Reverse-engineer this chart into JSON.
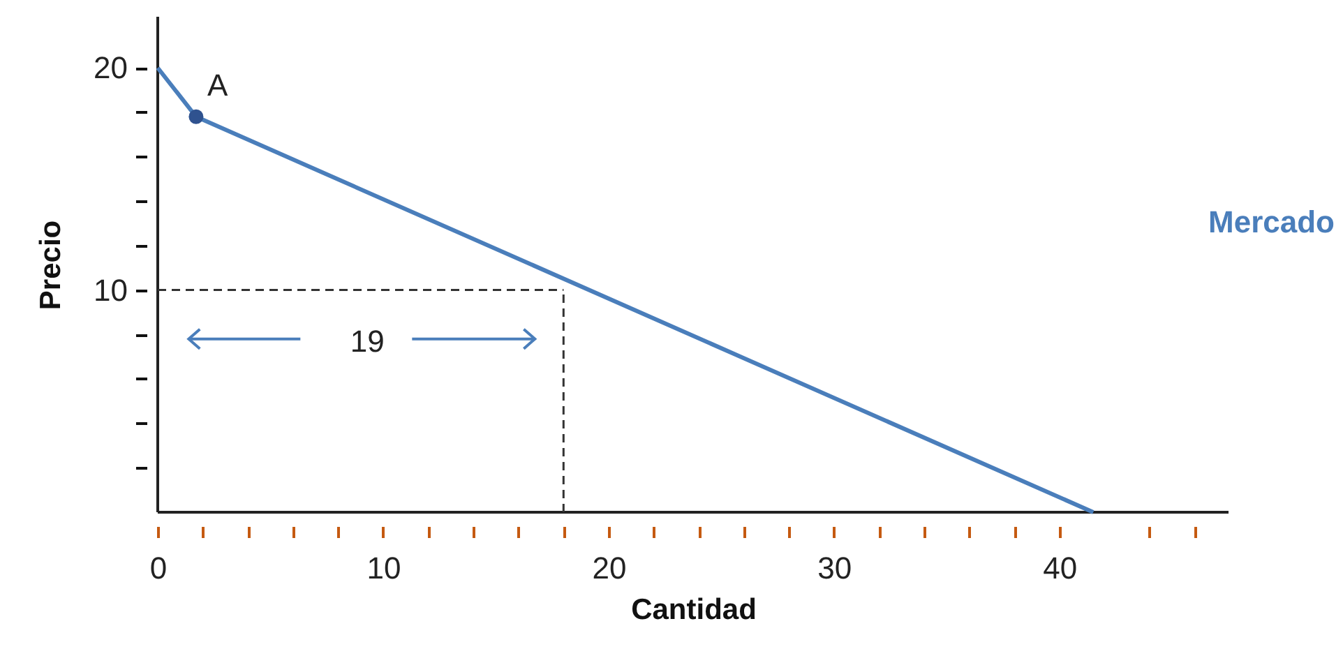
{
  "chart_data": {
    "type": "line",
    "xlabel": "Cantidad",
    "ylabel": "Precio",
    "xlim": [
      0,
      47.5
    ],
    "ylim": [
      0,
      22.3
    ],
    "xticks": [
      {
        "value": 0,
        "label": "0"
      },
      {
        "value": 2,
        "label": null
      },
      {
        "value": 4,
        "label": null
      },
      {
        "value": 6,
        "label": null
      },
      {
        "value": 8,
        "label": null
      },
      10,
      {
        "value": 12,
        "label": null
      },
      {
        "value": 14,
        "label": null
      },
      {
        "value": 16,
        "label": null
      },
      {
        "value": 18,
        "label": null
      },
      20,
      {
        "value": 22,
        "label": null
      },
      {
        "value": 24,
        "label": null
      },
      {
        "value": 26,
        "label": null
      },
      {
        "value": 28,
        "label": null
      },
      30,
      {
        "value": 32,
        "label": null
      },
      {
        "value": 34,
        "label": null
      },
      {
        "value": 36,
        "label": null
      },
      {
        "value": 38,
        "label": null
      },
      40,
      {
        "value": 44,
        "label": null
      },
      {
        "value": 46,
        "label": null
      }
    ],
    "yticks": [
      {
        "value": 2,
        "label": null
      },
      {
        "value": 4,
        "label": null
      },
      {
        "value": 6,
        "label": null
      },
      {
        "value": 8,
        "label": null
      },
      10,
      {
        "value": 12,
        "label": null
      },
      {
        "value": 14,
        "label": null
      },
      {
        "value": 16,
        "label": null
      },
      {
        "value": 18,
        "label": null
      },
      20
    ],
    "series": [
      {
        "name": "Mercado",
        "type": "line",
        "color": "#4a7ebb",
        "x": [
          0,
          1.7,
          41.5
        ],
        "values": [
          20,
          17.8,
          0
        ]
      },
      {
        "type": "scatter",
        "color": "#2f528f",
        "x": [
          1.7
        ],
        "values": [
          17.8
        ]
      }
    ],
    "ref_lines": [
      {
        "axis": "y",
        "value": 10,
        "color": "#333333",
        "line_style": "dashed"
      },
      {
        "axis": "x",
        "value": 18,
        "color": "#333333",
        "line_style": "dashed"
      }
    ],
    "annotations": [
      {
        "text": "A",
        "x": 1.7,
        "y": 17.8
      },
      "19"
    ]
  }
}
